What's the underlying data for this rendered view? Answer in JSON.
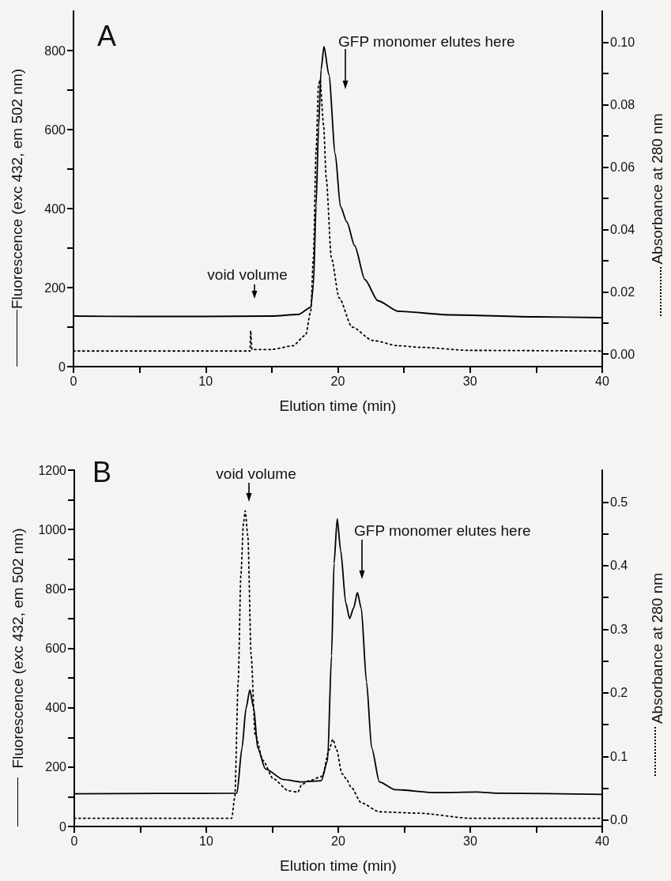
{
  "chart_data": [
    {
      "type": "line",
      "title": "A",
      "xlabel": "Elution time (min)",
      "ylabel": "Fluorescence (exc 432, em 502 nm)",
      "y2label": "Absorbance at 280 nm",
      "xlim": [
        0,
        40
      ],
      "xticks": [
        0,
        {
          "value": 5,
          "label": null
        },
        10,
        {
          "value": 15,
          "label": null
        },
        20,
        {
          "value": 25,
          "label": null
        },
        30,
        {
          "value": 35,
          "label": null
        },
        40
      ],
      "ylim": [
        0,
        900
      ],
      "yticks": [
        0,
        {
          "value": 100,
          "label": null
        },
        200,
        {
          "value": 300,
          "label": null
        },
        400,
        {
          "value": 500,
          "label": null
        },
        600,
        {
          "value": 700,
          "label": null
        },
        800
      ],
      "y2lim": [
        -0.004,
        0.11
      ],
      "y2ticks": [
        {
          "value": 0,
          "label": "0.00"
        },
        {
          "value": 0.01,
          "label": null
        },
        0.02,
        {
          "value": 0.03,
          "label": null
        },
        0.04,
        {
          "value": 0.05,
          "label": null
        },
        0.06,
        {
          "value": 0.07,
          "label": null
        },
        0.08,
        {
          "value": 0.09,
          "label": null
        },
        {
          "value": 0.1,
          "label": "0.10"
        }
      ],
      "marker": "none",
      "grid": false,
      "series": [
        {
          "color": "#000000",
          "line_style": "solid",
          "x": [
            0,
            5,
            10,
            15,
            17,
            17.95,
            18.15,
            18.35,
            18.54,
            18.73,
            18.95,
            19.32,
            19.8,
            20.19,
            20.68,
            21.27,
            22.05,
            23.02,
            24.58,
            28.5,
            35,
            40
          ],
          "values": [
            128,
            127,
            127,
            128,
            132,
            150,
            207,
            406,
            606,
            752,
            810,
            739,
            539,
            406,
            366,
            306,
            220,
            167,
            140,
            131,
            126,
            124
          ]
        },
        {
          "color": "#000000",
          "line_style": "dotted",
          "axis": "y2",
          "x": [
            0,
            13.35,
            13.4,
            13.5,
            15,
            16.59,
            17.56,
            17.95,
            18.15,
            18.35,
            18.54,
            18.65,
            18.92,
            19.12,
            19.51,
            20.1,
            21.07,
            22.63,
            24.58,
            26.2,
            30,
            40
          ],
          "values": [
            0.001,
            0.001,
            0.0075,
            0.0015,
            0.0015,
            0.0027,
            0.0061,
            0.0138,
            0.031,
            0.065,
            0.0864,
            0.088,
            0.0735,
            0.0564,
            0.0308,
            0.018,
            0.0087,
            0.0044,
            0.0027,
            0.0022,
            0.0012,
            0.001
          ]
        }
      ],
      "annotations": [
        "void volume",
        "GFP monomer elutes here"
      ]
    },
    {
      "type": "line",
      "title": "B",
      "xlabel": "Elution time (min)",
      "ylabel": "Fluorescence (exc 432, em 502 nm)",
      "y2label": "Absorbance at 280 nm",
      "xlim": [
        0,
        40
      ],
      "xticks": [
        0,
        {
          "value": 5,
          "label": null
        },
        10,
        {
          "value": 15,
          "label": null
        },
        20,
        {
          "value": 25,
          "label": null
        },
        30,
        {
          "value": 35,
          "label": null
        },
        40
      ],
      "ylim": [
        0,
        1200
      ],
      "yticks": [
        0,
        {
          "value": 100,
          "label": null
        },
        200,
        {
          "value": 300,
          "label": null
        },
        400,
        {
          "value": 500,
          "label": null
        },
        600,
        {
          "value": 700,
          "label": null
        },
        800,
        {
          "value": 900,
          "label": null
        },
        1000,
        {
          "value": 1100,
          "label": null
        },
        1200
      ],
      "y2lim": [
        -0.01,
        0.55
      ],
      "y2ticks": [
        {
          "value": 0,
          "label": "0.0"
        },
        {
          "value": 0.05,
          "label": null
        },
        0.1,
        {
          "value": 0.15,
          "label": null
        },
        0.2,
        {
          "value": 0.25,
          "label": null
        },
        0.3,
        {
          "value": 0.35,
          "label": null
        },
        0.4,
        {
          "value": 0.45,
          "label": null
        },
        0.5
      ],
      "marker": "none",
      "grid": false,
      "series": [
        {
          "color": "#000000",
          "line_style": "solid",
          "x": [
            0,
            12.32,
            12.71,
            13.01,
            13.3,
            13.6,
            13.89,
            14.48,
            15.85,
            17.23,
            18.71,
            19.19,
            19.49,
            19.68,
            19.92,
            20.18,
            20.57,
            20.86,
            21.16,
            21.45,
            21.74,
            22.14,
            22.53,
            23.12,
            24.3,
            27.44,
            30.5,
            32,
            40
          ],
          "values": [
            110,
            112,
            265,
            398,
            460,
            398,
            265,
            194,
            158,
            150,
            154,
            221,
            575,
            886,
            1036,
            930,
            753,
            700,
            735,
            788,
            735,
            487,
            265,
            150,
            124,
            114,
            116,
            112,
            108
          ]
        },
        {
          "color": "#000000",
          "line_style": "dotted",
          "axis": "y2",
          "x": [
            0,
            11.93,
            12.16,
            12.42,
            12.62,
            12.82,
            12.95,
            13.15,
            13.4,
            13.7,
            14.29,
            15.07,
            16.25,
            16.94,
            17.23,
            17.82,
            18.8,
            19.3,
            19.59,
            19.88,
            20.28,
            20.6,
            20.97,
            21.75,
            23.13,
            26.03,
            30,
            40
          ],
          "values": [
            0.003,
            0.003,
            0.036,
            0.218,
            0.384,
            0.467,
            0.486,
            0.446,
            0.259,
            0.135,
            0.094,
            0.065,
            0.046,
            0.044,
            0.056,
            0.062,
            0.069,
            0.11,
            0.127,
            0.11,
            0.073,
            0.065,
            0.052,
            0.027,
            0.013,
            0.011,
            0.003,
            0.003
          ]
        }
      ],
      "annotations": [
        "void volume",
        "GFP monomer elutes here"
      ]
    }
  ]
}
